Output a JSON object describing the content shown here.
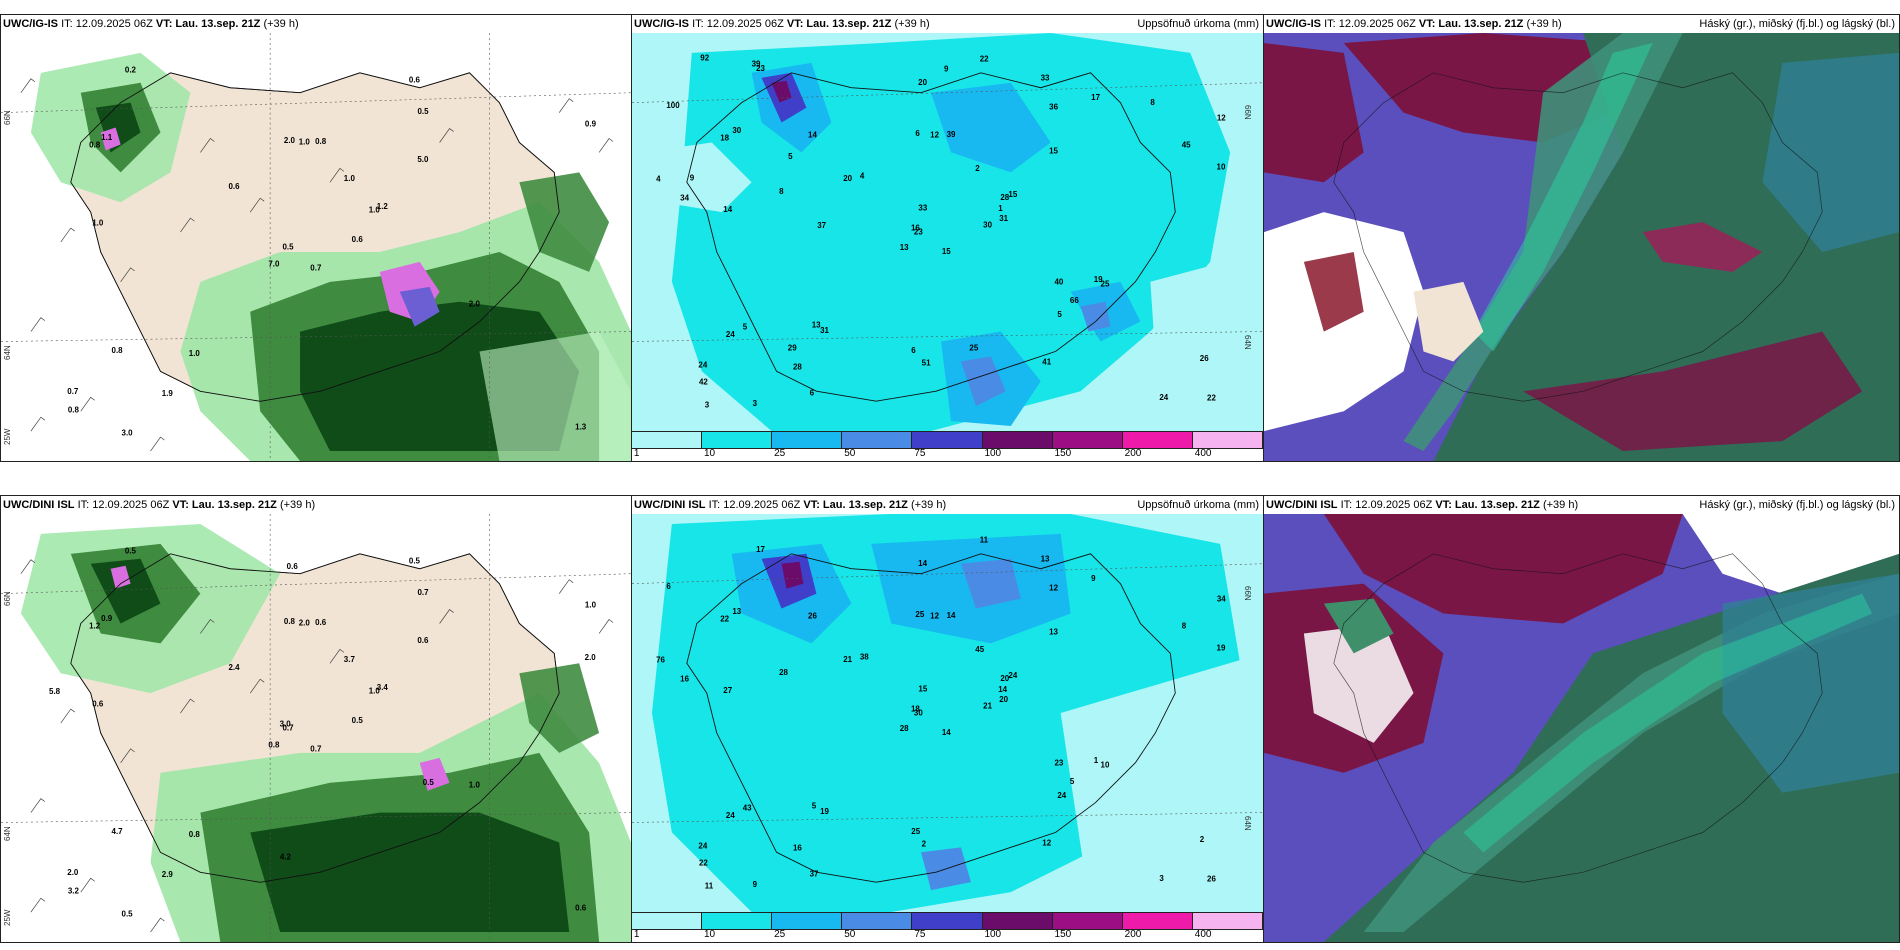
{
  "panels": {
    "top_left": {
      "model": "UWC/IG-IS",
      "info": "IT: 12.09.2025 06Z",
      "vt_prefix": "VT:",
      "vt_value": "Lau. 13.sep. 21Z",
      "lead": "(+39 h)",
      "lat_labels": [
        "66N",
        "64N"
      ],
      "lon_label": "25W",
      "values": [
        "0.7",
        "0.8",
        "0.5",
        "0.7",
        "1.0",
        "1.0",
        "0.6",
        "0.8",
        "0.5",
        "0.6",
        "0.2",
        "1.3",
        "1.0",
        "0.9",
        "7.0",
        "5.0",
        "3.0",
        "2.0",
        "1.0",
        "0.8",
        "0.6",
        "0.8",
        "1.9",
        "1.0",
        "1.2",
        "2.0",
        "1.1"
      ]
    },
    "top_mid": {
      "model": "UWC/IG-IS",
      "info": "IT: 12.09.2025 06Z",
      "vt_prefix": "VT:",
      "vt_value": "Lau. 13.sep. 21Z",
      "lead": "(+39 h)",
      "right_title": "Uppsöfnuð úrkoma (mm)",
      "lat_labels": [
        "66N",
        "64N"
      ],
      "values": [
        "15",
        "18",
        "23",
        "24",
        "28",
        "31",
        "33",
        "39",
        "36",
        "30",
        "23",
        "22",
        "14",
        "12",
        "13",
        "15",
        "3",
        "6",
        "2",
        "5",
        "4",
        "42",
        "28",
        "12",
        "15",
        "25",
        "30",
        "20",
        "34",
        "40",
        "10",
        "16",
        "6",
        "33",
        "14",
        "17",
        "13",
        "24",
        "26",
        "19",
        "22",
        "20",
        "8",
        "5",
        "6",
        "4",
        "1",
        "3",
        "51",
        "31",
        "24",
        "45",
        "100",
        "66",
        "41",
        "29",
        "39",
        "92",
        "25",
        "8",
        "9",
        "37",
        "9",
        "5"
      ]
    },
    "top_right": {
      "model": "UWC/IG-IS",
      "info": "IT: 12.09.2025 06Z",
      "vt_prefix": "VT:",
      "vt_value": "Lau. 13.sep. 21Z",
      "lead": "(+39 h)",
      "right_title": "Háský (gr.), miðský (fj.bl.) og lágský (bl.)"
    },
    "bottom_left": {
      "model": "UWC/DINI ISL",
      "info": "IT: 12.09.2025 06Z",
      "vt_prefix": "VT:",
      "vt_value": "Lau. 13.sep. 21Z",
      "lead": "(+39 h)",
      "lat_labels": [
        "66N",
        "64N"
      ],
      "lon_label": "25W",
      "values": [
        "0.7",
        "1.2",
        "0.7",
        "2.0",
        "1.0",
        "0.8",
        "0.5",
        "0.6",
        "0.7",
        "0.5",
        "0.5",
        "0.6",
        "0.6",
        "1.0",
        "0.8",
        "0.6",
        "0.5",
        "0.8",
        "3.7",
        "4.7",
        "2.4",
        "3.2",
        "2.9",
        "2.0",
        "3.4",
        "1.0",
        "0.9",
        "0.6",
        "5.8",
        "0.5",
        "2.0",
        "3.0",
        "4.2"
      ]
    },
    "bottom_mid": {
      "model": "UWC/DINI ISL",
      "info": "IT: 12.09.2025 06Z",
      "vt_prefix": "VT:",
      "vt_value": "Lau. 13.sep. 21Z",
      "lead": "(+39 h)",
      "right_title": "Uppsöfnuð úrkoma (mm)",
      "lat_labels": [
        "66N",
        "64N"
      ],
      "values": [
        "14",
        "22",
        "30",
        "24",
        "20",
        "19",
        "13",
        "14",
        "12",
        "21",
        "17",
        "26",
        "27",
        "34",
        "28",
        "13",
        "9",
        "25",
        "45",
        "43",
        "38",
        "22",
        "16",
        "12",
        "24",
        "10",
        "13",
        "14",
        "16",
        "23",
        "19",
        "18",
        "25",
        "15",
        "26",
        "9",
        "5",
        "3",
        "2",
        "1",
        "11",
        "21",
        "28",
        "24",
        "37",
        "76",
        "14",
        "11",
        "2",
        "20",
        "24",
        "8",
        "6",
        "5",
        "12"
      ]
    },
    "bottom_right": {
      "model": "UWC/DINI ISL",
      "info": "IT: 12.09.2025 06Z",
      "vt_prefix": "VT:",
      "vt_value": "Lau. 13.sep. 21Z",
      "lead": "(+39 h)",
      "right_title": "Háský (gr.), miðský (fj.bl.) og lágský (bl.)"
    }
  },
  "colorbar": {
    "labels": [
      "1",
      "10",
      "25",
      "50",
      "75",
      "100",
      "150",
      "200",
      "400"
    ],
    "colors": [
      "#aef6f7",
      "#17e5e8",
      "#17b9f0",
      "#4a8be6",
      "#3f3fc9",
      "#6b0c6a",
      "#9c0e84",
      "#ee1aa9",
      "#f5b4ef"
    ]
  },
  "palette": {
    "land": "#f1e4d4",
    "precip_light": "#9ee6a6",
    "precip_mid": "#3f8c40",
    "precip_dark": "#0f4c18",
    "precip_bg": "#8ff3f5",
    "precip_cyan": "#18e2e8",
    "cloud_high": "#2f6d57",
    "cloud_mid": "#5a4fbd",
    "cloud_low": "#7a1646"
  }
}
